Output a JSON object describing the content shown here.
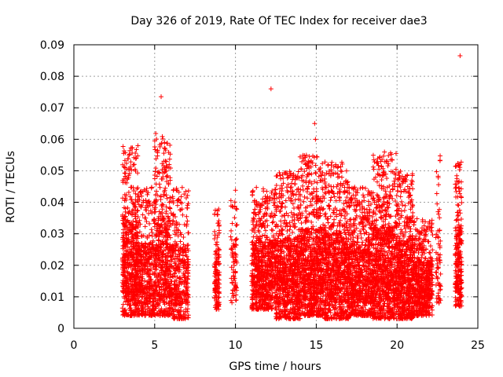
{
  "chart_data": {
    "type": "scatter",
    "title": "Day 326 of 2019, Rate Of TEC Index for receiver dae3",
    "xlabel": "GPS time / hours",
    "ylabel": "ROTI / TECUs",
    "xlim": [
      0,
      25
    ],
    "ylim": [
      0,
      0.09
    ],
    "xticks": [
      0,
      5,
      10,
      15,
      20,
      25
    ],
    "yticks": [
      0,
      0.01,
      0.02,
      0.03,
      0.04,
      0.05,
      0.06,
      0.07,
      0.08,
      0.09
    ],
    "xtick_labels": [
      "0",
      "5",
      "10",
      "15",
      "20",
      "25"
    ],
    "ytick_labels": [
      "0",
      "0.01",
      "0.02",
      "0.03",
      "0.04",
      "0.05",
      "0.06",
      "0.07",
      "0.08",
      "0.09"
    ],
    "grid": true,
    "marker": "+",
    "marker_color": "#ff0000",
    "series": [
      {
        "name": "ROTI",
        "clusters": [
          {
            "x_range": [
              3.0,
              4.0
            ],
            "y_range": [
              0.004,
              0.058
            ],
            "count": 380
          },
          {
            "x_range": [
              4.0,
              5.0
            ],
            "y_range": [
              0.004,
              0.045
            ],
            "count": 250
          },
          {
            "x_range": [
              5.0,
              6.0
            ],
            "y_range": [
              0.004,
              0.062
            ],
            "count": 320
          },
          {
            "x_range": [
              6.0,
              7.1
            ],
            "y_range": [
              0.003,
              0.045
            ],
            "count": 240
          },
          {
            "x_range": [
              8.7,
              9.0
            ],
            "y_range": [
              0.006,
              0.041
            ],
            "count": 80
          },
          {
            "x_range": [
              9.7,
              10.1
            ],
            "y_range": [
              0.008,
              0.045
            ],
            "count": 50
          },
          {
            "x_range": [
              11.0,
              12.5
            ],
            "y_range": [
              0.006,
              0.045
            ],
            "count": 450
          },
          {
            "x_range": [
              12.5,
              14.0
            ],
            "y_range": [
              0.003,
              0.05
            ],
            "count": 500
          },
          {
            "x_range": [
              14.0,
              15.5
            ],
            "y_range": [
              0.004,
              0.055
            ],
            "count": 520
          },
          {
            "x_range": [
              15.5,
              17.0
            ],
            "y_range": [
              0.003,
              0.053
            ],
            "count": 500
          },
          {
            "x_range": [
              17.0,
              18.5
            ],
            "y_range": [
              0.004,
              0.045
            ],
            "count": 480
          },
          {
            "x_range": [
              18.5,
              20.0
            ],
            "y_range": [
              0.003,
              0.056
            ],
            "count": 520
          },
          {
            "x_range": [
              20.0,
              21.0
            ],
            "y_range": [
              0.003,
              0.05
            ],
            "count": 380
          },
          {
            "x_range": [
              21.0,
              22.2
            ],
            "y_range": [
              0.004,
              0.035
            ],
            "count": 350
          },
          {
            "x_range": [
              22.4,
              22.7
            ],
            "y_range": [
              0.008,
              0.055
            ],
            "count": 40
          },
          {
            "x_range": [
              23.6,
              24.0
            ],
            "y_range": [
              0.007,
              0.053
            ],
            "count": 150
          }
        ],
        "outliers": [
          {
            "x": 5.4,
            "y": 0.0735
          },
          {
            "x": 12.2,
            "y": 0.076
          },
          {
            "x": 14.9,
            "y": 0.065
          },
          {
            "x": 14.95,
            "y": 0.06
          },
          {
            "x": 23.9,
            "y": 0.0865
          }
        ]
      }
    ]
  }
}
